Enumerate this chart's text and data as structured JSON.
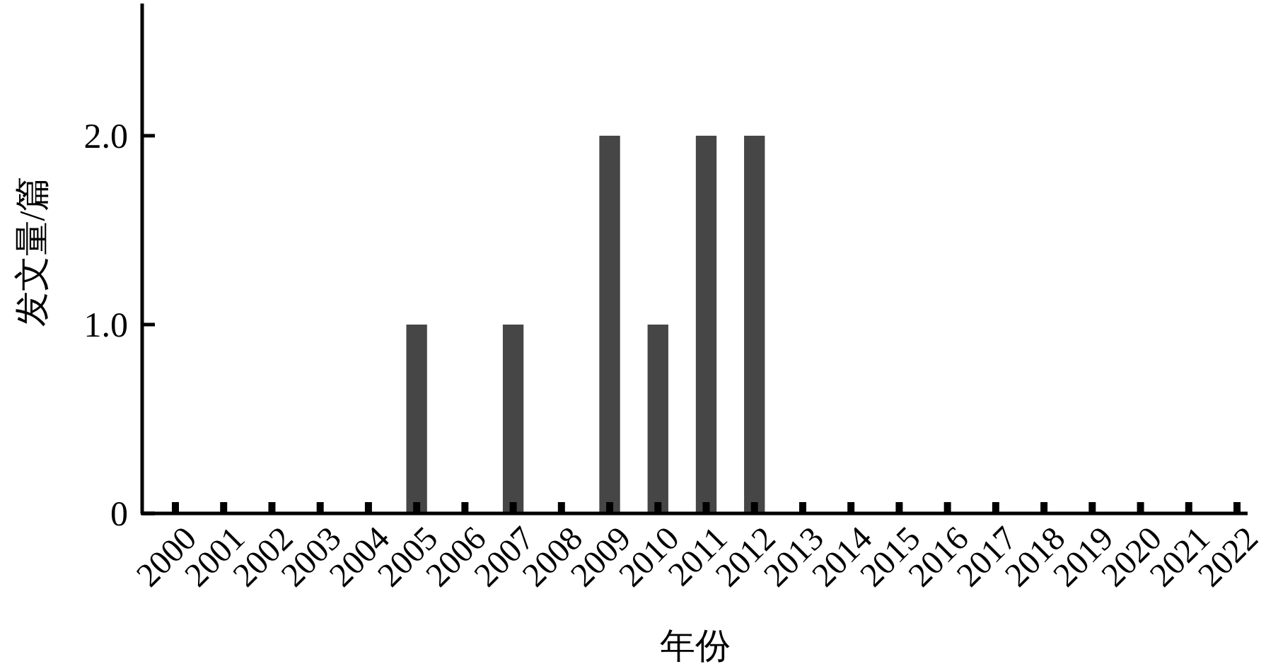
{
  "chart_data": {
    "type": "bar",
    "xlabel": "年份",
    "ylabel": "发文量/篇",
    "categories": [
      "2000",
      "2001",
      "2002",
      "2003",
      "2004",
      "2005",
      "2006",
      "2007",
      "2008",
      "2009",
      "2010",
      "2011",
      "2012",
      "2013",
      "2014",
      "2015",
      "2016",
      "2017",
      "2018",
      "2019",
      "2020",
      "2021",
      "2022"
    ],
    "values": [
      0,
      0,
      0,
      0,
      0,
      1,
      0,
      1,
      0,
      2,
      1,
      2,
      2,
      0,
      0,
      0,
      0,
      0,
      0,
      0,
      0,
      0,
      0
    ],
    "color": "#464646",
    "ylim": [
      0,
      2.7
    ],
    "yticks": [
      0,
      {
        "value": 1,
        "label": "1.0"
      },
      {
        "value": 2,
        "label": "2.0"
      }
    ]
  }
}
